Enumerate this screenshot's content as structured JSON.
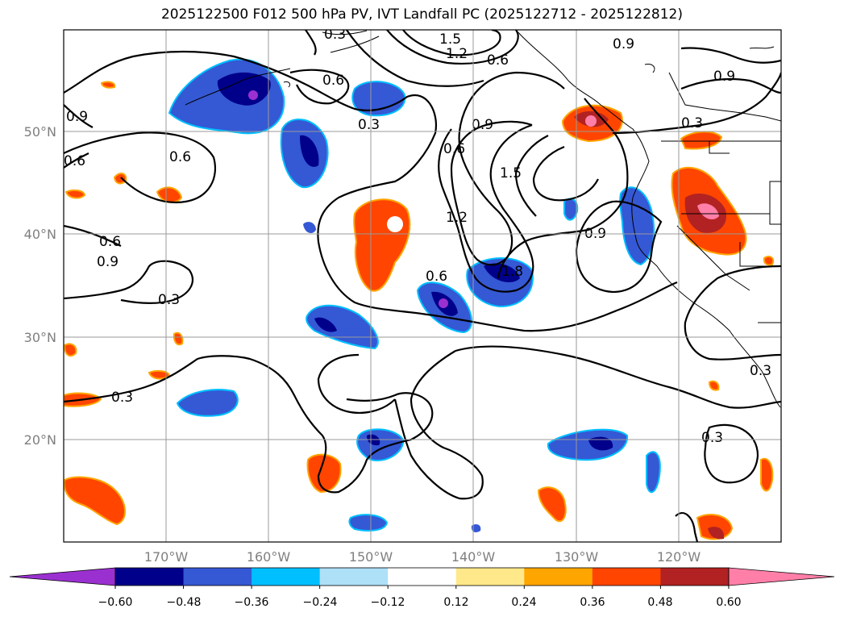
{
  "title": "2025122500 F012 500 hPa PV, IVT Landfall PC (2025122712 - 2025122812)",
  "lat_labels": [
    "50°N",
    "40°N",
    "30°N",
    "20°N"
  ],
  "lon_labels": [
    "170°W",
    "160°W",
    "150°W",
    "140°W",
    "130°W",
    "120°W"
  ],
  "contour_labels": [
    "1.5",
    "1.2",
    "0.6",
    "0.3",
    "0.6",
    "0.9",
    "0.6",
    "0.6",
    "0.9",
    "0.6",
    "1.5",
    "1.2",
    "0.9",
    "1.8",
    "0.6",
    "0.3",
    "0.3",
    "0.9",
    "0.3",
    "0.9",
    "0.3",
    "0.6",
    "0.3",
    "0.9",
    "0.3"
  ],
  "colorbar": {
    "ticks": [
      "−0.60",
      "−0.48",
      "−0.36",
      "−0.24",
      "−0.12",
      "0.12",
      "0.24",
      "0.36",
      "0.48",
      "0.60"
    ],
    "colors": [
      "#9b30d0",
      "#00008b",
      "#3558d4",
      "#00bfff",
      "#aee0f7",
      "#ffffff",
      "#ffe88a",
      "#ffa500",
      "#ff4500",
      "#b22222",
      "#ff7fa8"
    ]
  },
  "chart_data": {
    "type": "map",
    "title": "2025122500 F012 500 hPa PV, IVT Landfall PC (2025122712 - 2025122812)",
    "fill_variable": "IVT Landfall PC",
    "contour_variable": "500 hPa PV",
    "contour_levels": [
      0.3,
      0.6,
      0.9,
      1.2,
      1.5,
      1.8
    ],
    "fill_levels": [
      -0.6,
      -0.48,
      -0.36,
      -0.24,
      -0.12,
      0.12,
      0.24,
      0.36,
      0.48,
      0.6
    ],
    "lon_range": [
      -180,
      -110
    ],
    "lat_range": [
      10,
      60
    ],
    "gridlines": true
  }
}
